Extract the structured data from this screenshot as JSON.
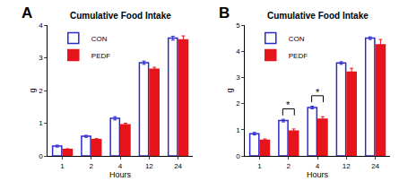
{
  "chart_data": [
    {
      "type": "bar",
      "title": "Cumulative Food Intake",
      "x_label": "Hours",
      "y_label": "g",
      "categories": [
        "1",
        "2",
        "4",
        "12",
        "24"
      ],
      "series": [
        {
          "name": "CON",
          "color": "#2a2ad0",
          "marker": "hollow",
          "values": [
            0.3,
            0.6,
            1.15,
            2.85,
            3.6
          ],
          "errors": [
            0.03,
            0.03,
            0.05,
            0.05,
            0.06
          ]
        },
        {
          "name": "PEDF",
          "color": "#e8141c",
          "marker": "filled",
          "values": [
            0.2,
            0.5,
            0.95,
            2.65,
            3.55
          ],
          "errors": [
            0.02,
            0.03,
            0.05,
            0.06,
            0.12
          ]
        }
      ],
      "ylim": [
        0,
        4
      ],
      "yticks": [
        0,
        1,
        2,
        3,
        4
      ],
      "grid": false,
      "legend": "upper left",
      "annotations": [
        {
          "text": "A"
        }
      ]
    },
    {
      "type": "bar",
      "title": "Cumulative Food Intake",
      "x_label": "Hours",
      "y_label": "g",
      "categories": [
        "1",
        "2",
        "4",
        "12",
        "24"
      ],
      "series": [
        {
          "name": "CON",
          "color": "#2a2ad0",
          "marker": "hollow",
          "values": [
            0.85,
            1.35,
            1.85,
            3.55,
            4.5
          ],
          "errors": [
            0.05,
            0.05,
            0.05,
            0.05,
            0.05
          ]
        },
        {
          "name": "PEDF",
          "color": "#e8141c",
          "marker": "filled",
          "values": [
            0.6,
            0.95,
            1.4,
            3.2,
            4.25
          ],
          "errors": [
            0.05,
            0.08,
            0.1,
            0.15,
            0.2
          ]
        }
      ],
      "ylim": [
        0,
        5
      ],
      "yticks": [
        0,
        1,
        2,
        3,
        4,
        5
      ],
      "grid": false,
      "legend": "upper left",
      "annotations": [
        {
          "text": "B"
        },
        {
          "text": "*",
          "category": "2"
        },
        {
          "text": "*",
          "category": "4"
        }
      ]
    }
  ]
}
